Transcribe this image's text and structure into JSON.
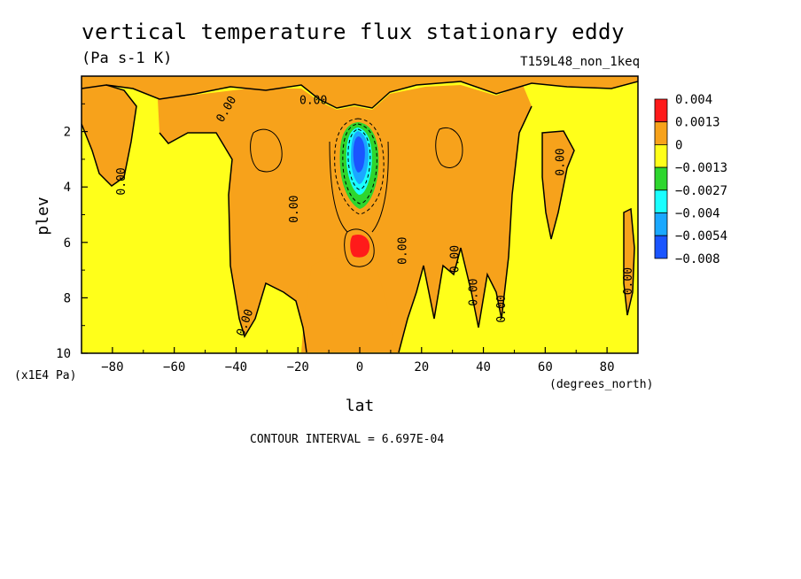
{
  "header": {
    "title": "vertical temperature flux stationary eddy",
    "units": "(Pa s-1 K)",
    "run": "T159L48_non_1keq"
  },
  "footer": {
    "contour_interval": "CONTOUR INTERVAL = 6.697E-04"
  },
  "colors": {
    "red": "#ff1a1a",
    "orange": "#f7a21b",
    "yellow": "#ffff1a",
    "green": "#2ed62e",
    "cyan": "#1affff",
    "lightblue": "#1aa8ff",
    "blue": "#1a55ff"
  },
  "chart_data": {
    "type": "heatmap",
    "title": "vertical temperature flux stationary eddy",
    "subtitle": "(Pa s-1 K)",
    "xlabel": "lat",
    "ylabel": "plev",
    "x_units": "(degrees_north)",
    "y_units": "(x1E4 Pa)",
    "xlim": [
      -90,
      90
    ],
    "ylim": [
      10,
      0
    ],
    "x_ticks": [
      -80,
      -60,
      -40,
      -20,
      0,
      20,
      40,
      60,
      80
    ],
    "y_ticks": [
      2,
      4,
      6,
      8,
      10
    ],
    "colorbar": {
      "levels": [
        "0.004",
        "0.0013",
        "0",
        "-0.0013",
        "-0.0027",
        "-0.004",
        "-0.0054",
        "-0.008"
      ],
      "colors": [
        "#ff1a1a",
        "#f7a21b",
        "#ffff1a",
        "#2ed62e",
        "#1affff",
        "#1aa8ff",
        "#1a55ff"
      ]
    },
    "contour_labels": [
      {
        "text": "0.00",
        "lat": -77,
        "plev": 3.8,
        "rot": -90
      },
      {
        "text": "0.00",
        "lat": -43,
        "plev": 1.2,
        "rot": -60
      },
      {
        "text": "0.00",
        "lat": -37,
        "plev": 8.9,
        "rot": -70
      },
      {
        "text": "0.00",
        "lat": -21,
        "plev": 4.8,
        "rot": -90
      },
      {
        "text": "0.00",
        "lat": -15,
        "plev": 0.9,
        "rot": 0
      },
      {
        "text": "0.00",
        "lat": 14,
        "plev": 6.3,
        "rot": -90
      },
      {
        "text": "0.00",
        "lat": 31,
        "plev": 6.6,
        "rot": -90
      },
      {
        "text": "0.00",
        "lat": 37,
        "plev": 7.8,
        "rot": -90
      },
      {
        "text": "0.00",
        "lat": 46,
        "plev": 8.4,
        "rot": -90
      },
      {
        "text": "0.00",
        "lat": 65,
        "plev": 3.1,
        "rot": -90
      },
      {
        "text": "0.00",
        "lat": 87,
        "plev": 7.4,
        "rot": -90
      }
    ],
    "features": [
      {
        "name": "positive-max",
        "lat": 0,
        "plev": 6.1,
        "value": "0.004"
      },
      {
        "name": "negative-min",
        "lat": -1,
        "plev": 3.0,
        "value": "-0.008"
      }
    ]
  }
}
